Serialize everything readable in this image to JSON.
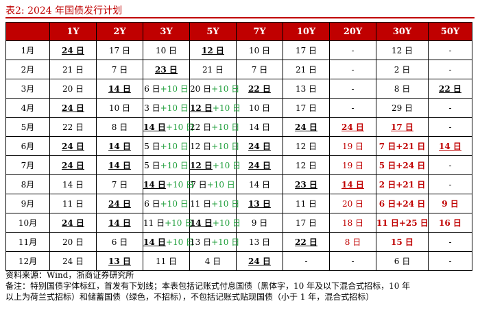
{
  "title": "表2:   2024 年国债发行计划",
  "table": {
    "headers": [
      "",
      "1Y",
      "2Y",
      "3Y",
      "5Y",
      "7Y",
      "10Y",
      "20Y",
      "30Y",
      "50Y"
    ],
    "rows": [
      {
        "month": "1月",
        "cells": [
          [
            {
              "t": "24 日",
              "b": true,
              "u": true
            }
          ],
          [
            {
              "t": "17 日"
            }
          ],
          [
            {
              "t": "10 日"
            }
          ],
          [
            {
              "t": "12 日",
              "b": true,
              "u": true
            }
          ],
          [
            {
              "t": "10 日"
            }
          ],
          [
            {
              "t": "17 日"
            }
          ],
          [
            {
              "t": "-"
            }
          ],
          [
            {
              "t": "12 日"
            }
          ],
          [
            {
              "t": "-"
            }
          ]
        ]
      },
      {
        "month": "2月",
        "cells": [
          [
            {
              "t": "21 日"
            }
          ],
          [
            {
              "t": "7 日"
            }
          ],
          [
            {
              "t": "23 日",
              "b": true,
              "u": true
            }
          ],
          [
            {
              "t": "21 日"
            }
          ],
          [
            {
              "t": "7 日"
            }
          ],
          [
            {
              "t": "21 日"
            }
          ],
          [
            {
              "t": "-"
            }
          ],
          [
            {
              "t": "2 日"
            }
          ],
          [
            {
              "t": "-"
            }
          ]
        ]
      },
      {
        "month": "3月",
        "cells": [
          [
            {
              "t": "20 日"
            }
          ],
          [
            {
              "t": "14 日",
              "b": true,
              "u": true
            }
          ],
          [
            {
              "t": "6 日"
            },
            {
              "t": "+10 日",
              "c": "grn"
            }
          ],
          [
            {
              "t": "20 日"
            },
            {
              "t": "+10 日",
              "c": "grn"
            }
          ],
          [
            {
              "t": "22 日",
              "b": true,
              "u": true
            }
          ],
          [
            {
              "t": "13 日"
            }
          ],
          [
            {
              "t": "-"
            }
          ],
          [
            {
              "t": "8 日"
            }
          ],
          [
            {
              "t": "22 日",
              "b": true,
              "u": true
            }
          ]
        ]
      },
      {
        "month": "4月",
        "cells": [
          [
            {
              "t": "24 日",
              "b": true,
              "u": true
            }
          ],
          [
            {
              "t": "10 日"
            }
          ],
          [
            {
              "t": "3 日"
            },
            {
              "t": "+10 日",
              "c": "grn"
            }
          ],
          [
            {
              "t": "12 日",
              "b": true,
              "u": true
            },
            {
              "t": "+10 日",
              "c": "grn"
            }
          ],
          [
            {
              "t": "10 日"
            }
          ],
          [
            {
              "t": "17 日"
            }
          ],
          [
            {
              "t": "-"
            }
          ],
          [
            {
              "t": "29 日"
            }
          ],
          [
            {
              "t": "-"
            }
          ]
        ]
      },
      {
        "month": "5月",
        "cells": [
          [
            {
              "t": "22 日"
            }
          ],
          [
            {
              "t": "8 日"
            }
          ],
          [
            {
              "t": "14 日",
              "b": true,
              "u": true
            },
            {
              "t": "+10 日",
              "c": "grn"
            }
          ],
          [
            {
              "t": "22 日"
            },
            {
              "t": "+10 日",
              "c": "grn"
            }
          ],
          [
            {
              "t": "14 日"
            }
          ],
          [
            {
              "t": "24 日",
              "b": true,
              "u": true
            }
          ],
          [
            {
              "t": "24 日",
              "b": true,
              "u": true,
              "c": "red"
            }
          ],
          [
            {
              "t": "17 日",
              "b": true,
              "u": true,
              "c": "red"
            }
          ],
          [
            {
              "t": "-"
            }
          ]
        ]
      },
      {
        "month": "6月",
        "cells": [
          [
            {
              "t": "24 日",
              "b": true,
              "u": true
            }
          ],
          [
            {
              "t": "14 日",
              "b": true,
              "u": true
            }
          ],
          [
            {
              "t": "5 日"
            },
            {
              "t": "+10 日",
              "c": "grn"
            }
          ],
          [
            {
              "t": "12 日"
            },
            {
              "t": "+10 日",
              "c": "grn"
            }
          ],
          [
            {
              "t": "24 日",
              "b": true,
              "u": true
            }
          ],
          [
            {
              "t": "12 日"
            }
          ],
          [
            {
              "t": "19 日",
              "c": "red"
            }
          ],
          [
            {
              "t": "7 日+21 日",
              "b": true,
              "c": "red"
            }
          ],
          [
            {
              "t": "14 日",
              "b": true,
              "u": true,
              "c": "red"
            }
          ]
        ]
      },
      {
        "month": "7月",
        "cells": [
          [
            {
              "t": "24 日",
              "b": true,
              "u": true
            }
          ],
          [
            {
              "t": "14 日",
              "b": true,
              "u": true
            }
          ],
          [
            {
              "t": "5 日"
            },
            {
              "t": "+10 日",
              "c": "grn"
            }
          ],
          [
            {
              "t": "12 日",
              "b": true,
              "u": true
            },
            {
              "t": "+10 日",
              "c": "grn"
            }
          ],
          [
            {
              "t": "24 日",
              "b": true,
              "u": true
            }
          ],
          [
            {
              "t": "12 日"
            }
          ],
          [
            {
              "t": "19 日",
              "c": "red"
            }
          ],
          [
            {
              "t": "5 日+24 日",
              "b": true,
              "c": "red"
            }
          ],
          [
            {
              "t": "-"
            }
          ]
        ]
      },
      {
        "month": "8月",
        "cells": [
          [
            {
              "t": "14 日"
            }
          ],
          [
            {
              "t": "7 日"
            }
          ],
          [
            {
              "t": "14 日",
              "b": true,
              "u": true
            },
            {
              "t": "+10 日",
              "c": "grn"
            }
          ],
          [
            {
              "t": "7 日"
            },
            {
              "t": "+10 日",
              "c": "grn"
            }
          ],
          [
            {
              "t": "14 日"
            }
          ],
          [
            {
              "t": "23 日",
              "b": true,
              "u": true
            }
          ],
          [
            {
              "t": "14 日",
              "b": true,
              "u": true,
              "c": "red"
            }
          ],
          [
            {
              "t": "2 日+21 日",
              "b": true,
              "c": "red"
            }
          ],
          [
            {
              "t": "-"
            }
          ]
        ]
      },
      {
        "month": "9月",
        "cells": [
          [
            {
              "t": "11 日"
            }
          ],
          [
            {
              "t": "24 日",
              "b": true,
              "u": true
            }
          ],
          [
            {
              "t": "6 日"
            },
            {
              "t": "+10 日",
              "c": "grn"
            }
          ],
          [
            {
              "t": "11 日"
            },
            {
              "t": "+10 日",
              "c": "grn"
            }
          ],
          [
            {
              "t": "13 日",
              "b": true,
              "u": true
            }
          ],
          [
            {
              "t": "11 日"
            }
          ],
          [
            {
              "t": "20 日",
              "c": "red"
            }
          ],
          [
            {
              "t": "6 日+24 日",
              "b": true,
              "c": "red"
            }
          ],
          [
            {
              "t": "9 日",
              "b": true,
              "c": "red"
            }
          ]
        ]
      },
      {
        "month": "10月",
        "cells": [
          [
            {
              "t": "24 日",
              "b": true,
              "u": true
            }
          ],
          [
            {
              "t": "14 日",
              "b": true,
              "u": true
            }
          ],
          [
            {
              "t": "11 日"
            },
            {
              "t": "+10 日",
              "c": "grn"
            }
          ],
          [
            {
              "t": "14 日",
              "b": true,
              "u": true
            },
            {
              "t": "+10 日",
              "c": "grn"
            }
          ],
          [
            {
              "t": "9 日"
            }
          ],
          [
            {
              "t": "17 日"
            }
          ],
          [
            {
              "t": "18 日",
              "c": "red"
            }
          ],
          [
            {
              "t": "11 日+25 日",
              "b": true,
              "c": "red"
            }
          ],
          [
            {
              "t": "16 日",
              "b": true,
              "c": "red"
            }
          ]
        ]
      },
      {
        "month": "11月",
        "cells": [
          [
            {
              "t": "20 日"
            }
          ],
          [
            {
              "t": "6 日"
            }
          ],
          [
            {
              "t": "14 日",
              "b": true,
              "u": true
            },
            {
              "t": "+10 日",
              "c": "grn"
            }
          ],
          [
            {
              "t": "13 日"
            },
            {
              "t": "+10 日",
              "c": "grn"
            }
          ],
          [
            {
              "t": "13 日"
            }
          ],
          [
            {
              "t": "22 日",
              "b": true,
              "u": true
            }
          ],
          [
            {
              "t": "8 日",
              "c": "red"
            }
          ],
          [
            {
              "t": "15 日",
              "b": true,
              "c": "red"
            }
          ],
          [
            {
              "t": "-"
            }
          ]
        ]
      },
      {
        "month": "12月",
        "cells": [
          [
            {
              "t": "24 日"
            }
          ],
          [
            {
              "t": "13 日",
              "b": true,
              "u": true
            }
          ],
          [
            {
              "t": "11 日"
            }
          ],
          [
            {
              "t": "4 日"
            }
          ],
          [
            {
              "t": "24 日",
              "b": true,
              "u": true
            }
          ],
          [
            {
              "t": "-"
            }
          ],
          [
            {
              "t": "-"
            }
          ],
          [
            {
              "t": "6 日"
            }
          ],
          [
            {
              "t": "-"
            }
          ]
        ]
      }
    ]
  },
  "footer": {
    "source": "资料来源：Wind，浙商证券研究所",
    "note1": "备注：特别国债字体标红，首发有下划线；本表包括记账式付息国债（黑体字，10 年及以下混合式招标，10 年",
    "note2": "以上为荷兰式招标）和储蓄国债（绿色，不招标），不包括记账式贴现国债（小于 1 年，混合式招标）"
  },
  "colors": {
    "accent": "#c00000",
    "savings_green": "#1e9e3a"
  }
}
